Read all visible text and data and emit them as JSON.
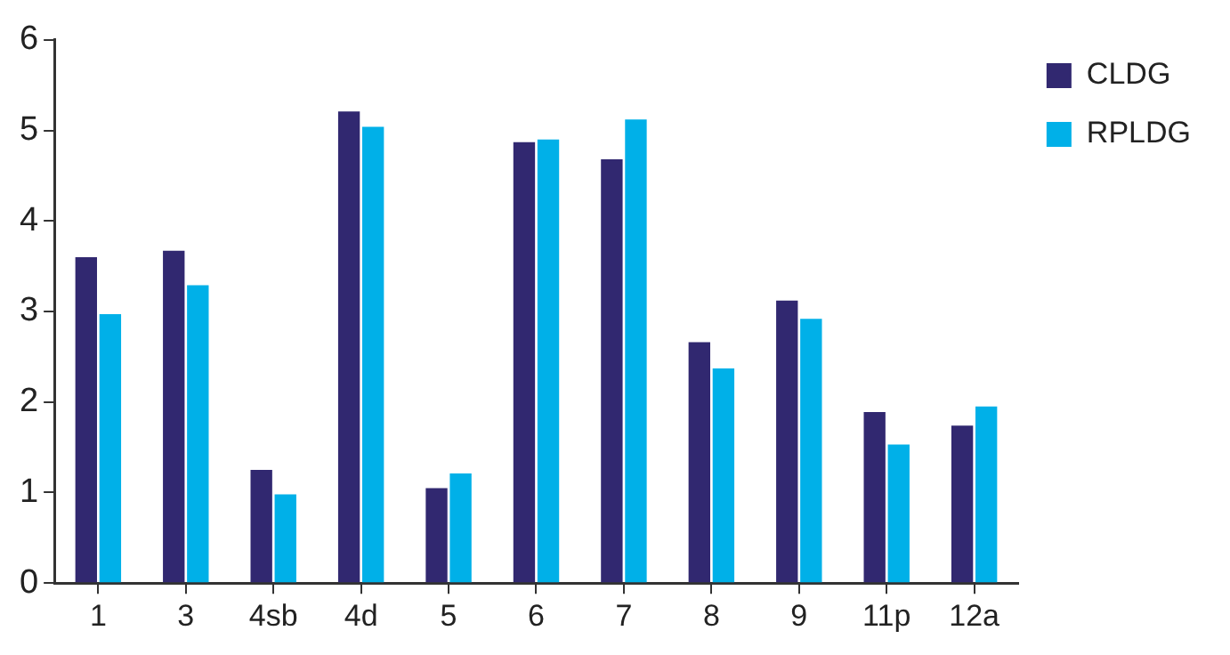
{
  "chart_data": {
    "type": "bar",
    "categories": [
      "1",
      "3",
      "4sb",
      "4d",
      "5",
      "6",
      "7",
      "8",
      "9",
      "11p",
      "12a"
    ],
    "series": [
      {
        "name": "CLDG",
        "color": "#312870",
        "values": [
          3.6,
          3.67,
          1.25,
          5.21,
          1.05,
          4.87,
          4.68,
          2.66,
          3.12,
          1.89,
          1.74
        ]
      },
      {
        "name": "RPLDG",
        "color": "#00b0e8",
        "values": [
          2.97,
          3.29,
          0.98,
          5.04,
          1.21,
          4.9,
          5.12,
          2.37,
          2.92,
          1.53,
          1.95
        ]
      }
    ],
    "ylim": [
      0,
      6
    ],
    "yticks": [
      0,
      1,
      2,
      3,
      4,
      5,
      6
    ],
    "grid": false,
    "legend": "top right"
  }
}
